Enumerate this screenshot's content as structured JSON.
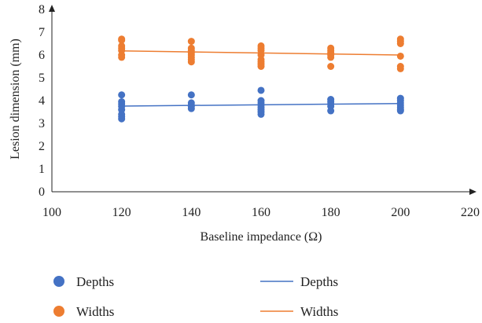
{
  "chart_data": {
    "type": "scatter",
    "xlabel": "Baseline impedance (Ω)",
    "ylabel": "Lesion dimension (mm)",
    "xlim": [
      100,
      220
    ],
    "ylim": [
      0,
      8
    ],
    "xticks": [
      "100",
      "120",
      "140",
      "160",
      "180",
      "200",
      "220"
    ],
    "yticks": [
      "0",
      "1",
      "2",
      "3",
      "4",
      "5",
      "6",
      "7",
      "8"
    ],
    "grid": false,
    "legend": "bottom",
    "colors": {
      "depths": "#4472c4",
      "widths": "#ed7d31"
    },
    "series": [
      {
        "name": "Depths",
        "kind": "points",
        "color": "#4472c4",
        "points": [
          [
            120,
            4.25
          ],
          [
            120,
            3.95
          ],
          [
            120,
            3.85
          ],
          [
            120,
            3.75
          ],
          [
            120,
            3.6
          ],
          [
            120,
            3.4
          ],
          [
            120,
            3.3
          ],
          [
            120,
            3.2
          ],
          [
            140,
            4.25
          ],
          [
            140,
            3.9
          ],
          [
            140,
            3.8
          ],
          [
            140,
            3.75
          ],
          [
            140,
            3.65
          ],
          [
            160,
            4.45
          ],
          [
            160,
            4.0
          ],
          [
            160,
            3.9
          ],
          [
            160,
            3.8
          ],
          [
            160,
            3.7
          ],
          [
            160,
            3.6
          ],
          [
            160,
            3.5
          ],
          [
            160,
            3.4
          ],
          [
            180,
            4.05
          ],
          [
            180,
            3.95
          ],
          [
            180,
            3.85
          ],
          [
            180,
            3.75
          ],
          [
            180,
            3.55
          ],
          [
            200,
            4.1
          ],
          [
            200,
            4.0
          ],
          [
            200,
            3.9
          ],
          [
            200,
            3.8
          ],
          [
            200,
            3.7
          ],
          [
            200,
            3.6
          ],
          [
            200,
            3.55
          ]
        ]
      },
      {
        "name": "Widths",
        "kind": "points",
        "color": "#ed7d31",
        "points": [
          [
            120,
            6.7
          ],
          [
            120,
            6.65
          ],
          [
            120,
            6.4
          ],
          [
            120,
            6.3
          ],
          [
            120,
            6.2
          ],
          [
            120,
            6.0
          ],
          [
            120,
            5.9
          ],
          [
            140,
            6.6
          ],
          [
            140,
            6.3
          ],
          [
            140,
            6.2
          ],
          [
            140,
            6.1
          ],
          [
            140,
            6.0
          ],
          [
            140,
            5.9
          ],
          [
            140,
            5.8
          ],
          [
            140,
            5.7
          ],
          [
            160,
            6.4
          ],
          [
            160,
            6.3
          ],
          [
            160,
            6.2
          ],
          [
            160,
            6.0
          ],
          [
            160,
            5.8
          ],
          [
            160,
            5.7
          ],
          [
            160,
            5.6
          ],
          [
            160,
            5.5
          ],
          [
            180,
            6.3
          ],
          [
            180,
            6.2
          ],
          [
            180,
            6.1
          ],
          [
            180,
            6.0
          ],
          [
            180,
            5.9
          ],
          [
            180,
            5.5
          ],
          [
            200,
            6.7
          ],
          [
            200,
            6.6
          ],
          [
            200,
            6.5
          ],
          [
            200,
            5.95
          ],
          [
            200,
            5.5
          ],
          [
            200,
            5.4
          ]
        ]
      },
      {
        "name": "Depths",
        "kind": "trendline",
        "color": "#4472c4",
        "points": [
          [
            120,
            3.76
          ],
          [
            200,
            3.87
          ]
        ]
      },
      {
        "name": "Widths",
        "kind": "trendline",
        "color": "#ed7d31",
        "points": [
          [
            120,
            6.18
          ],
          [
            200,
            6.0
          ]
        ]
      }
    ]
  }
}
